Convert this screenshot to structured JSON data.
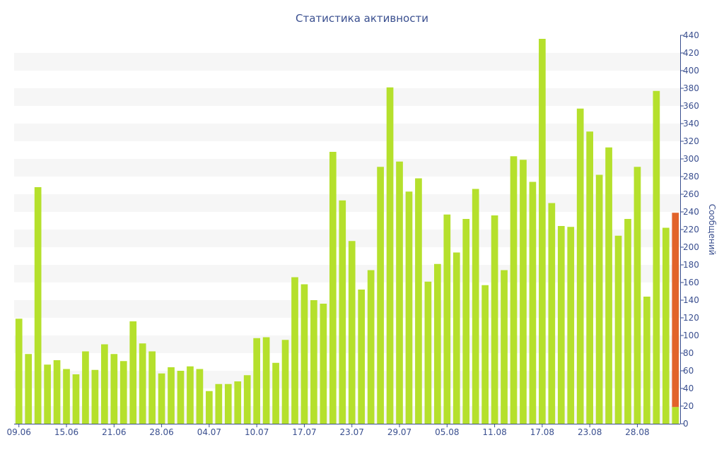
{
  "chart_data": {
    "type": "bar",
    "title": "Статистика активности",
    "ylabel": "Сообщений",
    "xlabel": "",
    "ylim": [
      0,
      440
    ],
    "y_ticks": [
      0,
      20,
      40,
      60,
      80,
      100,
      120,
      140,
      160,
      180,
      200,
      220,
      240,
      260,
      280,
      300,
      320,
      340,
      360,
      380,
      400,
      420,
      440
    ],
    "x_tick_labels": [
      {
        "index": 0,
        "label": "09.06"
      },
      {
        "index": 5,
        "label": "15.06"
      },
      {
        "index": 10,
        "label": "21.06"
      },
      {
        "index": 15,
        "label": "28.06"
      },
      {
        "index": 20,
        "label": "04.07"
      },
      {
        "index": 25,
        "label": "10.07"
      },
      {
        "index": 30,
        "label": "17.07"
      },
      {
        "index": 35,
        "label": "23.07"
      },
      {
        "index": 40,
        "label": "29.07"
      },
      {
        "index": 45,
        "label": "05.08"
      },
      {
        "index": 50,
        "label": "11.08"
      },
      {
        "index": 55,
        "label": "17.08"
      },
      {
        "index": 60,
        "label": "23.08"
      },
      {
        "index": 65,
        "label": "28.08"
      }
    ],
    "series": [
      {
        "values": [
          119,
          79,
          268,
          67,
          72,
          62,
          56,
          82,
          61,
          90,
          79,
          71,
          116,
          91,
          82,
          57,
          64,
          60,
          65,
          62,
          37,
          45,
          45,
          48,
          55,
          97,
          98,
          69,
          95,
          166,
          158,
          140,
          136,
          308,
          253,
          207,
          152,
          174,
          291,
          381,
          297,
          263,
          278,
          161,
          181,
          237,
          194,
          232,
          266,
          157,
          236,
          174,
          303,
          299,
          274,
          436,
          250,
          224,
          223,
          357,
          331,
          282,
          313,
          213,
          232,
          291,
          144,
          377,
          222,
          19
        ]
      },
      {
        "values": [
          0,
          0,
          0,
          0,
          0,
          0,
          0,
          0,
          0,
          0,
          0,
          0,
          0,
          0,
          0,
          0,
          0,
          0,
          0,
          0,
          0,
          0,
          0,
          0,
          0,
          0,
          0,
          0,
          0,
          0,
          0,
          0,
          0,
          0,
          0,
          0,
          0,
          0,
          0,
          0,
          0,
          0,
          0,
          0,
          0,
          0,
          0,
          0,
          0,
          0,
          0,
          0,
          0,
          0,
          0,
          0,
          0,
          0,
          0,
          0,
          0,
          0,
          0,
          0,
          0,
          0,
          0,
          0,
          0,
          220
        ]
      }
    ],
    "colors": {
      "bar": "#b5e02c",
      "bar_highlight": "#e2632a",
      "text": "#3a4f8f",
      "band": "#f6f6f6",
      "axis": "#3a4f8f"
    },
    "grid": "alternating horizontal bands",
    "y_axis_position": "right"
  }
}
